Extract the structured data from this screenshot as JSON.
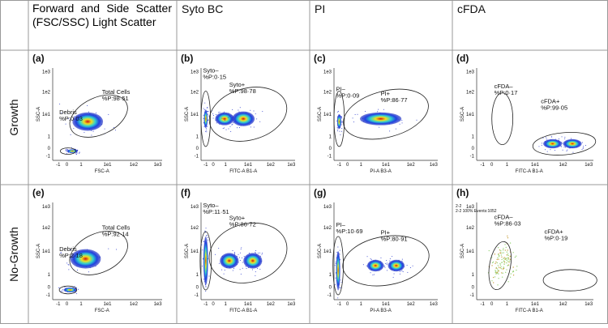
{
  "header": [
    "Forward and Side Scatter (FSC/SSC) Light Scatter",
    "Syto BC",
    "PI",
    "cFDA"
  ],
  "x_ticks": [
    "-1",
    "0",
    "1",
    "1e1",
    "1e2",
    "1e3"
  ],
  "y_ticks": [
    "-1",
    "0",
    "1",
    "1e1",
    "1e2",
    "1e3"
  ],
  "rows": [
    {
      "label": "Growth",
      "panels": [
        {
          "letter": "(a)",
          "x_label": "FSC-A",
          "y_label": "SSC-A",
          "gates": [
            {
              "name": "Total Cells",
              "stat": "%P:98·51"
            },
            {
              "name": "Debris",
              "stat": "%P:0·03"
            }
          ]
        },
        {
          "letter": "(b)",
          "x_label": "FITC-A B1-A",
          "y_label": "SSC-A",
          "gates": [
            {
              "name": "Syto–",
              "stat": "%P:0·15"
            },
            {
              "name": "Syto+",
              "stat": "%P:98·78"
            }
          ]
        },
        {
          "letter": "(c)",
          "x_label": "PI-A B3-A",
          "y_label": "SSC-A",
          "gates": [
            {
              "name": "PI–",
              "stat": "%P:0·09"
            },
            {
              "name": "PI+",
              "stat": "%P:86·77"
            }
          ]
        },
        {
          "letter": "(d)",
          "x_label": "FITC-A B1-A",
          "y_label": "SSC-A",
          "gates": [
            {
              "name": "cFDA–",
              "stat": "%P:0·17"
            },
            {
              "name": "cFDA+",
              "stat": "%P:99·05"
            }
          ]
        }
      ]
    },
    {
      "label": "No-Growth",
      "panels": [
        {
          "letter": "(e)",
          "x_label": "FSC-A",
          "y_label": "SSC-A",
          "gates": [
            {
              "name": "Total Cells",
              "stat": "%P:92·14"
            },
            {
              "name": "Debris",
              "stat": "%P:2·18"
            }
          ]
        },
        {
          "letter": "(f)",
          "x_label": "FITC-A B1-A",
          "y_label": "SSC-A",
          "gates": [
            {
              "name": "Syto–",
              "stat": "%P:11·51"
            },
            {
              "name": "Syto+",
              "stat": "%P:86·72"
            }
          ]
        },
        {
          "letter": "(g)",
          "x_label": "PI-A B3-A",
          "y_label": "SSC-A",
          "gates": [
            {
              "name": "PI–",
              "stat": "%P:10·69"
            },
            {
              "name": "PI+",
              "stat": "%P:80·91"
            }
          ]
        },
        {
          "letter": "(h)",
          "x_label": "FITC-A B1-A",
          "y_label": "SSC-A",
          "notes": [
            "2-2",
            "2-2 100% Events:1052"
          ],
          "gates": [
            {
              "name": "cFDA–",
              "stat": "%P:86·03"
            },
            {
              "name": "cFDA+",
              "stat": "%P:0·19"
            }
          ]
        }
      ]
    }
  ]
}
